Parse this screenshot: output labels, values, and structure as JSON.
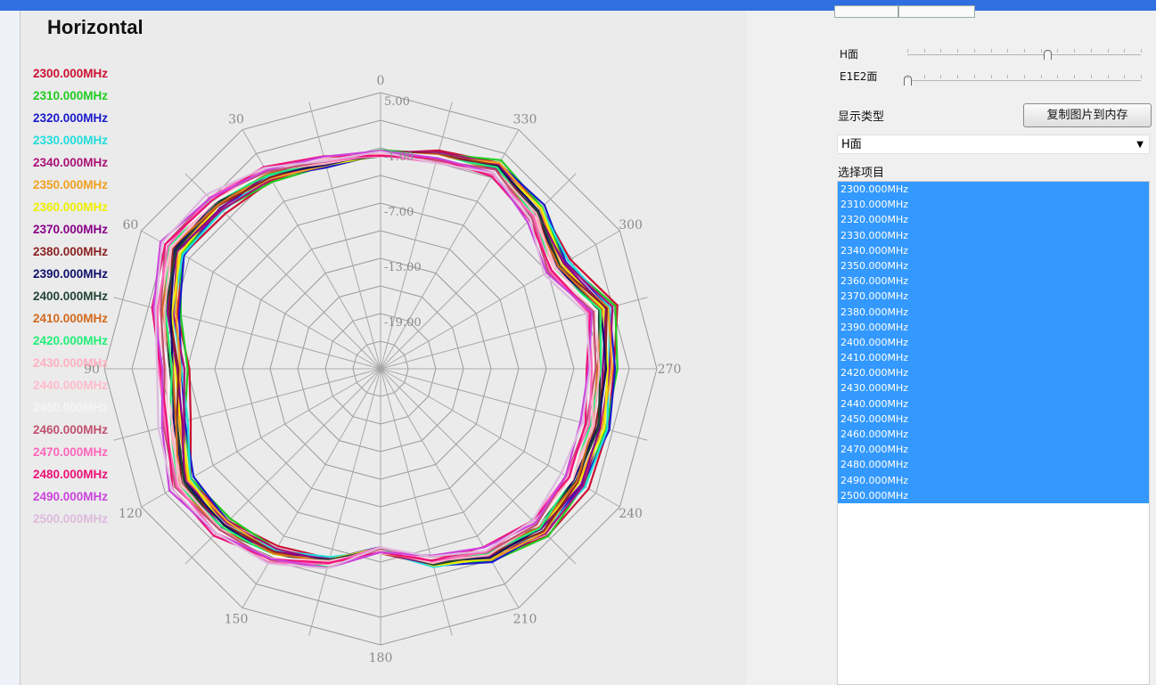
{
  "chart_data": {
    "type": "polar-line",
    "title": "Horizontal",
    "angle_labels": [
      "0",
      "30",
      "60",
      "90",
      "120",
      "150",
      "180",
      "210",
      "240",
      "270",
      "300",
      "330"
    ],
    "angle_direction": "counter-clockwise",
    "ring_labels": [
      "5.00",
      "-1.00",
      "-7.00",
      "-13.00",
      "-19.00"
    ],
    "radial_range": [
      -25,
      5
    ],
    "legend_placement": "left",
    "series": [
      {
        "name": "2300.000MHz",
        "color": "#cc1133"
      },
      {
        "name": "2310.000MHz",
        "color": "#22cc22"
      },
      {
        "name": "2320.000MHz",
        "color": "#1a1acc"
      },
      {
        "name": "2330.000MHz",
        "color": "#22dddd"
      },
      {
        "name": "2340.000MHz",
        "color": "#aa1177"
      },
      {
        "name": "2350.000MHz",
        "color": "#f0a020"
      },
      {
        "name": "2360.000MHz",
        "color": "#eeee00"
      },
      {
        "name": "2370.000MHz",
        "color": "#880088"
      },
      {
        "name": "2380.000MHz",
        "color": "#8b2222"
      },
      {
        "name": "2390.000MHz",
        "color": "#11116b"
      },
      {
        "name": "2400.000MHz",
        "color": "#224433"
      },
      {
        "name": "2410.000MHz",
        "color": "#d2691e"
      },
      {
        "name": "2420.000MHz",
        "color": "#22ee77"
      },
      {
        "name": "2430.000MHz",
        "color": "#ffb0c0"
      },
      {
        "name": "2440.000MHz",
        "color": "#ffbbcc"
      },
      {
        "name": "2450.000MHz",
        "color": "#f5f5f5"
      },
      {
        "name": "2460.000MHz",
        "color": "#c05070"
      },
      {
        "name": "2470.000MHz",
        "color": "#ff66bb"
      },
      {
        "name": "2480.000MHz",
        "color": "#ee1177"
      },
      {
        "name": "2490.000MHz",
        "color": "#cc44dd"
      },
      {
        "name": "2500.000MHz",
        "color": "#ddbbdd"
      }
    ]
  },
  "right_panel": {
    "slider_h_label": "H面",
    "slider_h_position": 0.6,
    "slider_e_label": "E1E2面",
    "slider_e_position": 0.0,
    "display_type_label": "显示类型",
    "copy_button_label": "复制图片到内存",
    "display_select_value": "H面",
    "select_items_label": "选择项目",
    "items": [
      "2300.000MHz",
      "2310.000MHz",
      "2320.000MHz",
      "2330.000MHz",
      "2340.000MHz",
      "2350.000MHz",
      "2360.000MHz",
      "2370.000MHz",
      "2380.000MHz",
      "2390.000MHz",
      "2400.000MHz",
      "2410.000MHz",
      "2420.000MHz",
      "2430.000MHz",
      "2440.000MHz",
      "2450.000MHz",
      "2460.000MHz",
      "2470.000MHz",
      "2480.000MHz",
      "2490.000MHz",
      "2500.000MHz"
    ]
  }
}
